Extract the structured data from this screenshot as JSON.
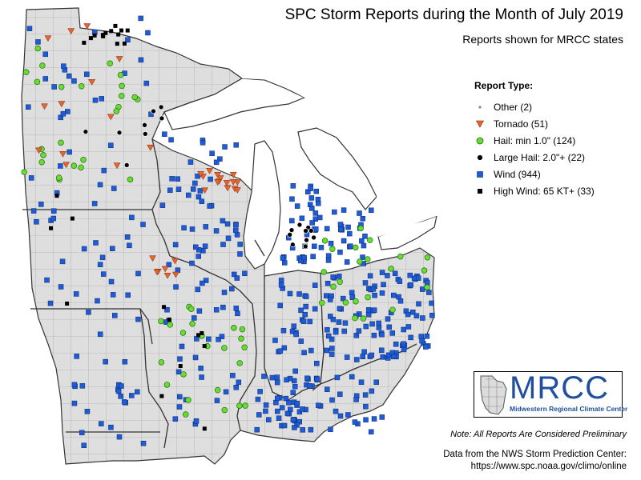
{
  "title": "SPC Storm Reports during the Month of July 2019",
  "subtitle": "Reports shown for MRCC states",
  "legend": {
    "title": "Report Type:",
    "items": [
      {
        "label": "Other (2)",
        "symbol": "small-dot-icon",
        "color": "#888888"
      },
      {
        "label": "Tornado (51)",
        "symbol": "triangle-down-icon",
        "color": "#e8642c"
      },
      {
        "label": "Hail: min 1.0\" (124)",
        "symbol": "circle-icon",
        "color": "#66dd33"
      },
      {
        "label": "Large Hail: 2.0\"+ (22)",
        "symbol": "circle-icon",
        "color": "#000000"
      },
      {
        "label": "Wind (944)",
        "symbol": "square-icon",
        "color": "#1f5bd6"
      },
      {
        "label": "High Wind: 65 KT+ (33)",
        "symbol": "square-icon",
        "color": "#000000"
      }
    ]
  },
  "logo": {
    "text": "MRCC",
    "subtitle": "Midwestern Regional Climate Center"
  },
  "note": "Note: All Reports Are Considered Preliminary",
  "source_line1": "Data from the NWS Storm Prediction Center:",
  "source_line2": "https://www.spc.noaa.gov/climo/online",
  "colors": {
    "land": "#dedede",
    "county_line": "#9a9a9a",
    "state_line": "#333333",
    "lake": "#ffffff"
  }
}
